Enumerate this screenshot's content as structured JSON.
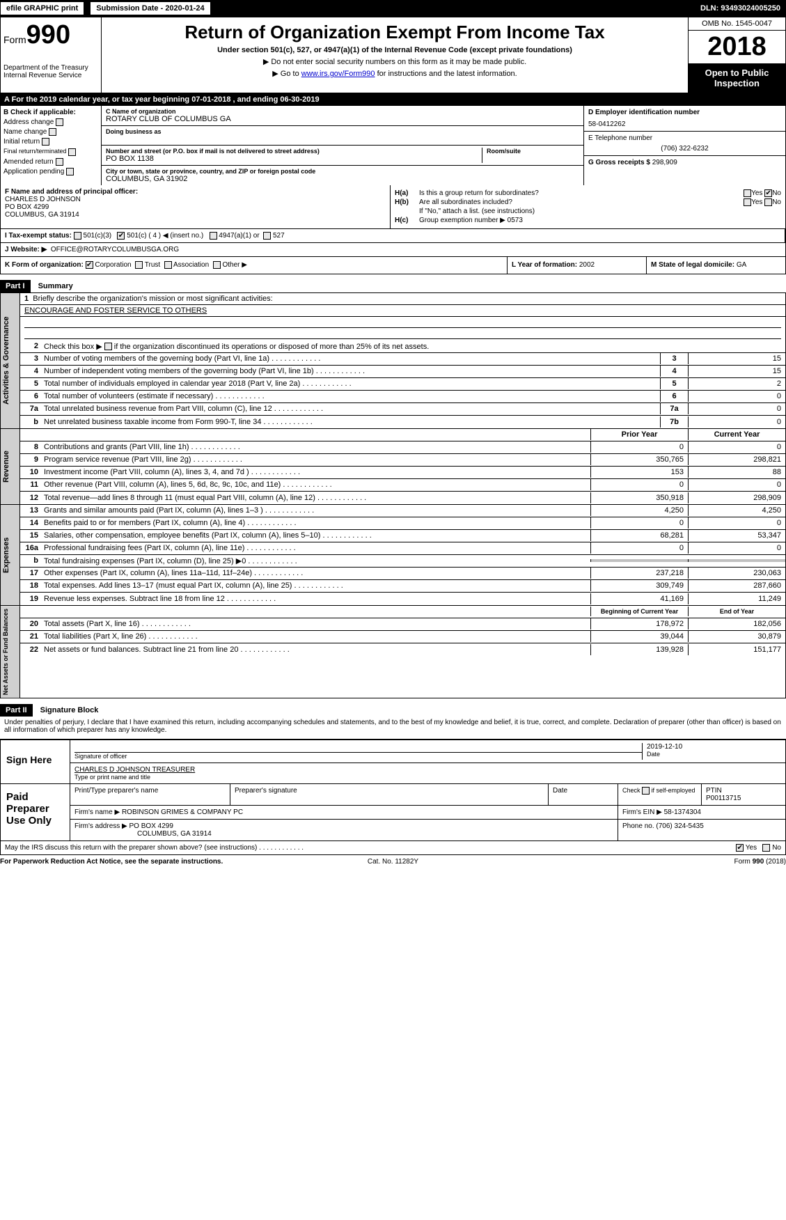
{
  "topbar": {
    "efile": "efile GRAPHIC print",
    "submission": "Submission Date - 2020-01-24",
    "dln": "DLN: 93493024005250"
  },
  "header": {
    "form_prefix": "Form",
    "form_num": "990",
    "dept": "Department of the Treasury\nInternal Revenue Service",
    "title": "Return of Organization Exempt From Income Tax",
    "sub1": "Under section 501(c), 527, or 4947(a)(1) of the Internal Revenue Code (except private foundations)",
    "sub2": "▶ Do not enter social security numbers on this form as it may be made public.",
    "sub3_pre": "▶ Go to ",
    "sub3_link": "www.irs.gov/Form990",
    "sub3_post": " for instructions and the latest information.",
    "omb": "OMB No. 1545-0047",
    "year": "2018",
    "open": "Open to Public Inspection"
  },
  "row_a": "A   For the 2019 calendar year, or tax year beginning 07-01-2018      , and ending 06-30-2019",
  "section_b": {
    "label": "B Check if applicable:",
    "items": [
      "Address change",
      "Name change",
      "Initial return",
      "Final return/terminated",
      "Amended return",
      "Application pending"
    ]
  },
  "section_c": {
    "name_label": "C Name of organization",
    "name": "ROTARY CLUB OF COLUMBUS GA",
    "dba_label": "Doing business as",
    "dba": "",
    "addr_label": "Number and street (or P.O. box if mail is not delivered to street address)",
    "addr": "PO BOX 1138",
    "room_label": "Room/suite",
    "city_label": "City or town, state or province, country, and ZIP or foreign postal code",
    "city": "COLUMBUS, GA  31902"
  },
  "section_d": {
    "ein_label": "D Employer identification number",
    "ein": "58-0412262",
    "phone_label": "E Telephone number",
    "phone": "(706) 322-6232",
    "gross_label": "G Gross receipts $",
    "gross": "298,909"
  },
  "section_f": {
    "label": "F Name and address of principal officer:",
    "name": "CHARLES D JOHNSON",
    "addr1": "PO BOX 4299",
    "addr2": "COLUMBUS, GA  31914"
  },
  "section_h": {
    "ha_label": "H(a)",
    "ha_text": "Is this a group return for subordinates?",
    "hb_label": "H(b)",
    "hb_text": "Are all subordinates included?",
    "hb_note": "If \"No,\" attach a list. (see instructions)",
    "hc_label": "H(c)",
    "hc_text": "Group exemption number ▶",
    "hc_val": "0573",
    "yes": "Yes",
    "no": "No"
  },
  "section_i": {
    "label": "I    Tax-exempt status:",
    "opts": [
      "501(c)(3)",
      "501(c) ( 4 ) ◀ (insert no.)",
      "4947(a)(1) or",
      "527"
    ]
  },
  "section_j": {
    "label": "J    Website: ▶",
    "val": "OFFICE@ROTARYCOLUMBUSGA.ORG"
  },
  "section_k": {
    "label": "K Form of organization:",
    "opts": [
      "Corporation",
      "Trust",
      "Association",
      "Other ▶"
    ]
  },
  "section_l": {
    "label": "L Year of formation:",
    "val": "2002"
  },
  "section_m": {
    "label": "M State of legal domicile:",
    "val": "GA"
  },
  "part1": {
    "label": "Part I",
    "title": "Summary"
  },
  "governance": {
    "side": "Activities & Governance",
    "line1_label": "1",
    "line1_text": "Briefly describe the organization's mission or most significant activities:",
    "line1_val": "ENCOURAGE AND FOSTER SERVICE TO OTHERS",
    "line2_label": "2",
    "line2_text": "Check this box ▶       if the organization discontinued its operations or disposed of more than 25% of its net assets.",
    "rows": [
      {
        "n": "3",
        "t": "Number of voting members of the governing body (Part VI, line 1a)",
        "c": "3",
        "v": "15"
      },
      {
        "n": "4",
        "t": "Number of independent voting members of the governing body (Part VI, line 1b)",
        "c": "4",
        "v": "15"
      },
      {
        "n": "5",
        "t": "Total number of individuals employed in calendar year 2018 (Part V, line 2a)",
        "c": "5",
        "v": "2"
      },
      {
        "n": "6",
        "t": "Total number of volunteers (estimate if necessary)",
        "c": "6",
        "v": "0"
      },
      {
        "n": "7a",
        "t": "Total unrelated business revenue from Part VIII, column (C), line 12",
        "c": "7a",
        "v": "0"
      },
      {
        "n": "b",
        "t": "Net unrelated business taxable income from Form 990-T, line 34",
        "c": "7b",
        "v": "0"
      }
    ]
  },
  "revenue": {
    "side": "Revenue",
    "prior": "Prior Year",
    "current": "Current Year",
    "rows": [
      {
        "n": "8",
        "t": "Contributions and grants (Part VIII, line 1h)",
        "p": "0",
        "c": "0"
      },
      {
        "n": "9",
        "t": "Program service revenue (Part VIII, line 2g)",
        "p": "350,765",
        "c": "298,821"
      },
      {
        "n": "10",
        "t": "Investment income (Part VIII, column (A), lines 3, 4, and 7d )",
        "p": "153",
        "c": "88"
      },
      {
        "n": "11",
        "t": "Other revenue (Part VIII, column (A), lines 5, 6d, 8c, 9c, 10c, and 11e)",
        "p": "0",
        "c": "0"
      },
      {
        "n": "12",
        "t": "Total revenue—add lines 8 through 11 (must equal Part VIII, column (A), line 12)",
        "p": "350,918",
        "c": "298,909"
      }
    ]
  },
  "expenses": {
    "side": "Expenses",
    "rows": [
      {
        "n": "13",
        "t": "Grants and similar amounts paid (Part IX, column (A), lines 1–3 )",
        "p": "4,250",
        "c": "4,250"
      },
      {
        "n": "14",
        "t": "Benefits paid to or for members (Part IX, column (A), line 4)",
        "p": "0",
        "c": "0"
      },
      {
        "n": "15",
        "t": "Salaries, other compensation, employee benefits (Part IX, column (A), lines 5–10)",
        "p": "68,281",
        "c": "53,347"
      },
      {
        "n": "16a",
        "t": "Professional fundraising fees (Part IX, column (A), line 11e)",
        "p": "0",
        "c": "0"
      },
      {
        "n": "b",
        "t": "Total fundraising expenses (Part IX, column (D), line 25) ▶0",
        "p": "",
        "c": "",
        "shaded": true
      },
      {
        "n": "17",
        "t": "Other expenses (Part IX, column (A), lines 11a–11d, 11f–24e)",
        "p": "237,218",
        "c": "230,063"
      },
      {
        "n": "18",
        "t": "Total expenses. Add lines 13–17 (must equal Part IX, column (A), line 25)",
        "p": "309,749",
        "c": "287,660"
      },
      {
        "n": "19",
        "t": "Revenue less expenses. Subtract line 18 from line 12",
        "p": "41,169",
        "c": "11,249"
      }
    ]
  },
  "netassets": {
    "side": "Net Assets or Fund Balances",
    "begin": "Beginning of Current Year",
    "end": "End of Year",
    "rows": [
      {
        "n": "20",
        "t": "Total assets (Part X, line 16)",
        "p": "178,972",
        "c": "182,056"
      },
      {
        "n": "21",
        "t": "Total liabilities (Part X, line 26)",
        "p": "39,044",
        "c": "30,879"
      },
      {
        "n": "22",
        "t": "Net assets or fund balances. Subtract line 21 from line 20",
        "p": "139,928",
        "c": "151,177"
      }
    ]
  },
  "part2": {
    "label": "Part II",
    "title": "Signature Block"
  },
  "perjury": "Under penalties of perjury, I declare that I have examined this return, including accompanying schedules and statements, and to the best of my knowledge and belief, it is true, correct, and complete. Declaration of preparer (other than officer) is based on all information of which preparer has any knowledge.",
  "sign": {
    "label": "Sign Here",
    "sig_officer": "Signature of officer",
    "date_val": "2019-12-10",
    "date_label": "Date",
    "name": "CHARLES D JOHNSON  TREASURER",
    "name_label": "Type or print name and title"
  },
  "paid": {
    "label": "Paid Preparer Use Only",
    "print_label": "Print/Type preparer's name",
    "prep_sig_label": "Preparer's signature",
    "date_label": "Date",
    "check_label": "Check        if self-employed",
    "ptin_label": "PTIN",
    "ptin": "P00113715",
    "firm_name_label": "Firm's name    ▶",
    "firm_name": "ROBINSON GRIMES & COMPANY PC",
    "firm_ein_label": "Firm's EIN ▶",
    "firm_ein": "58-1374304",
    "firm_addr_label": "Firm's address ▶",
    "firm_addr1": "PO BOX 4299",
    "firm_addr2": "COLUMBUS, GA  31914",
    "phone_label": "Phone no.",
    "phone": "(706) 324-5435"
  },
  "discuss": {
    "text": "May the IRS discuss this return with the preparer shown above? (see instructions)",
    "yes": "Yes",
    "no": "No"
  },
  "footer": {
    "left": "For Paperwork Reduction Act Notice, see the separate instructions.",
    "mid": "Cat. No. 11282Y",
    "right": "Form 990 (2018)"
  }
}
